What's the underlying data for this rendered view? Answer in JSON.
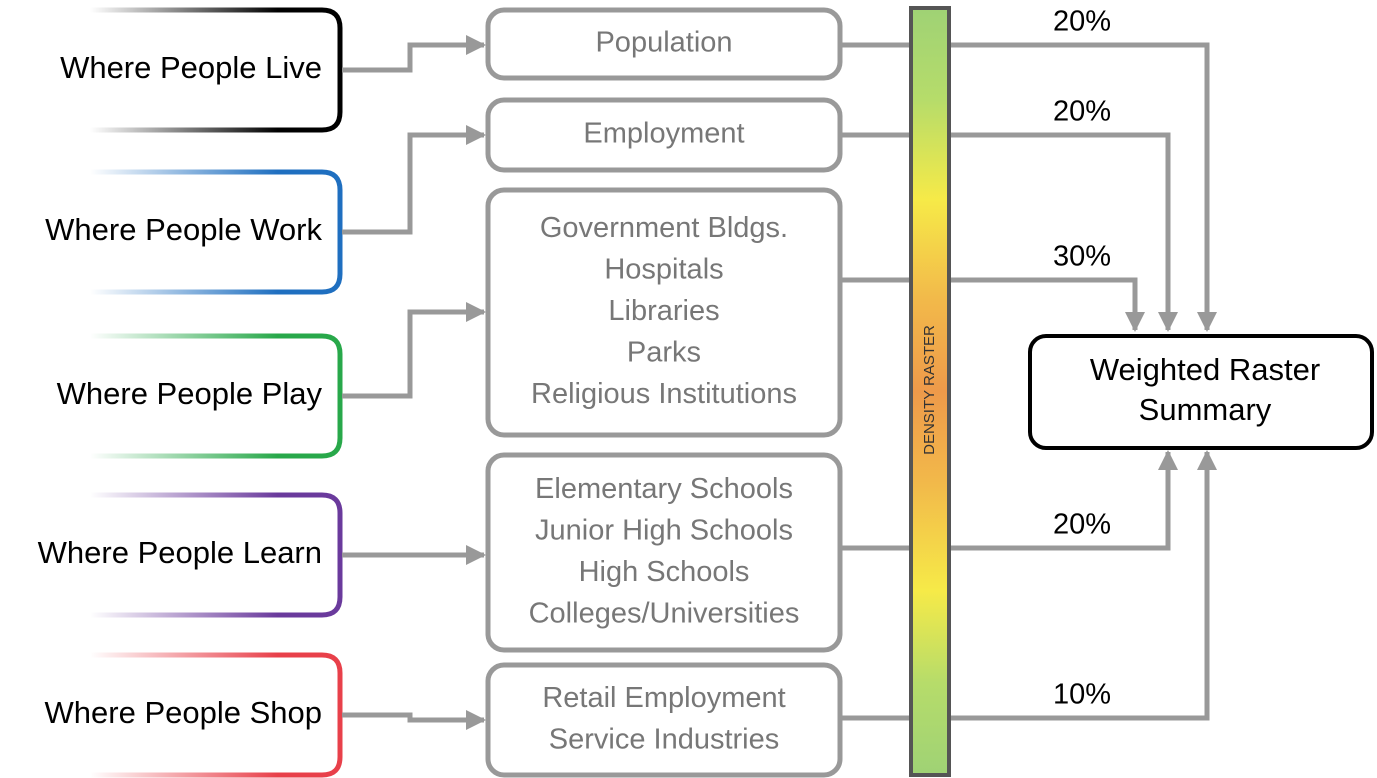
{
  "sources": [
    "Where People Live",
    "Where People Work",
    "Where People Play",
    "Where People Learn",
    "Where People Shop"
  ],
  "layers": [
    {
      "lines": [
        "Population"
      ],
      "weight": "20%"
    },
    {
      "lines": [
        "Employment"
      ],
      "weight": "20%"
    },
    {
      "lines": [
        "Government Bldgs.",
        "Hospitals",
        "Libraries",
        "Parks",
        "Religious Institutions"
      ],
      "weight": "30%"
    },
    {
      "lines": [
        "Elementary Schools",
        "Junior High Schools",
        "High Schools",
        "Colleges/Universities"
      ],
      "weight": "20%"
    },
    {
      "lines": [
        "Retail Employment",
        "Service Industries"
      ],
      "weight": "10%"
    }
  ],
  "raster_label": "DENSITY RASTER",
  "summary": [
    "Weighted Raster",
    "Summary"
  ]
}
